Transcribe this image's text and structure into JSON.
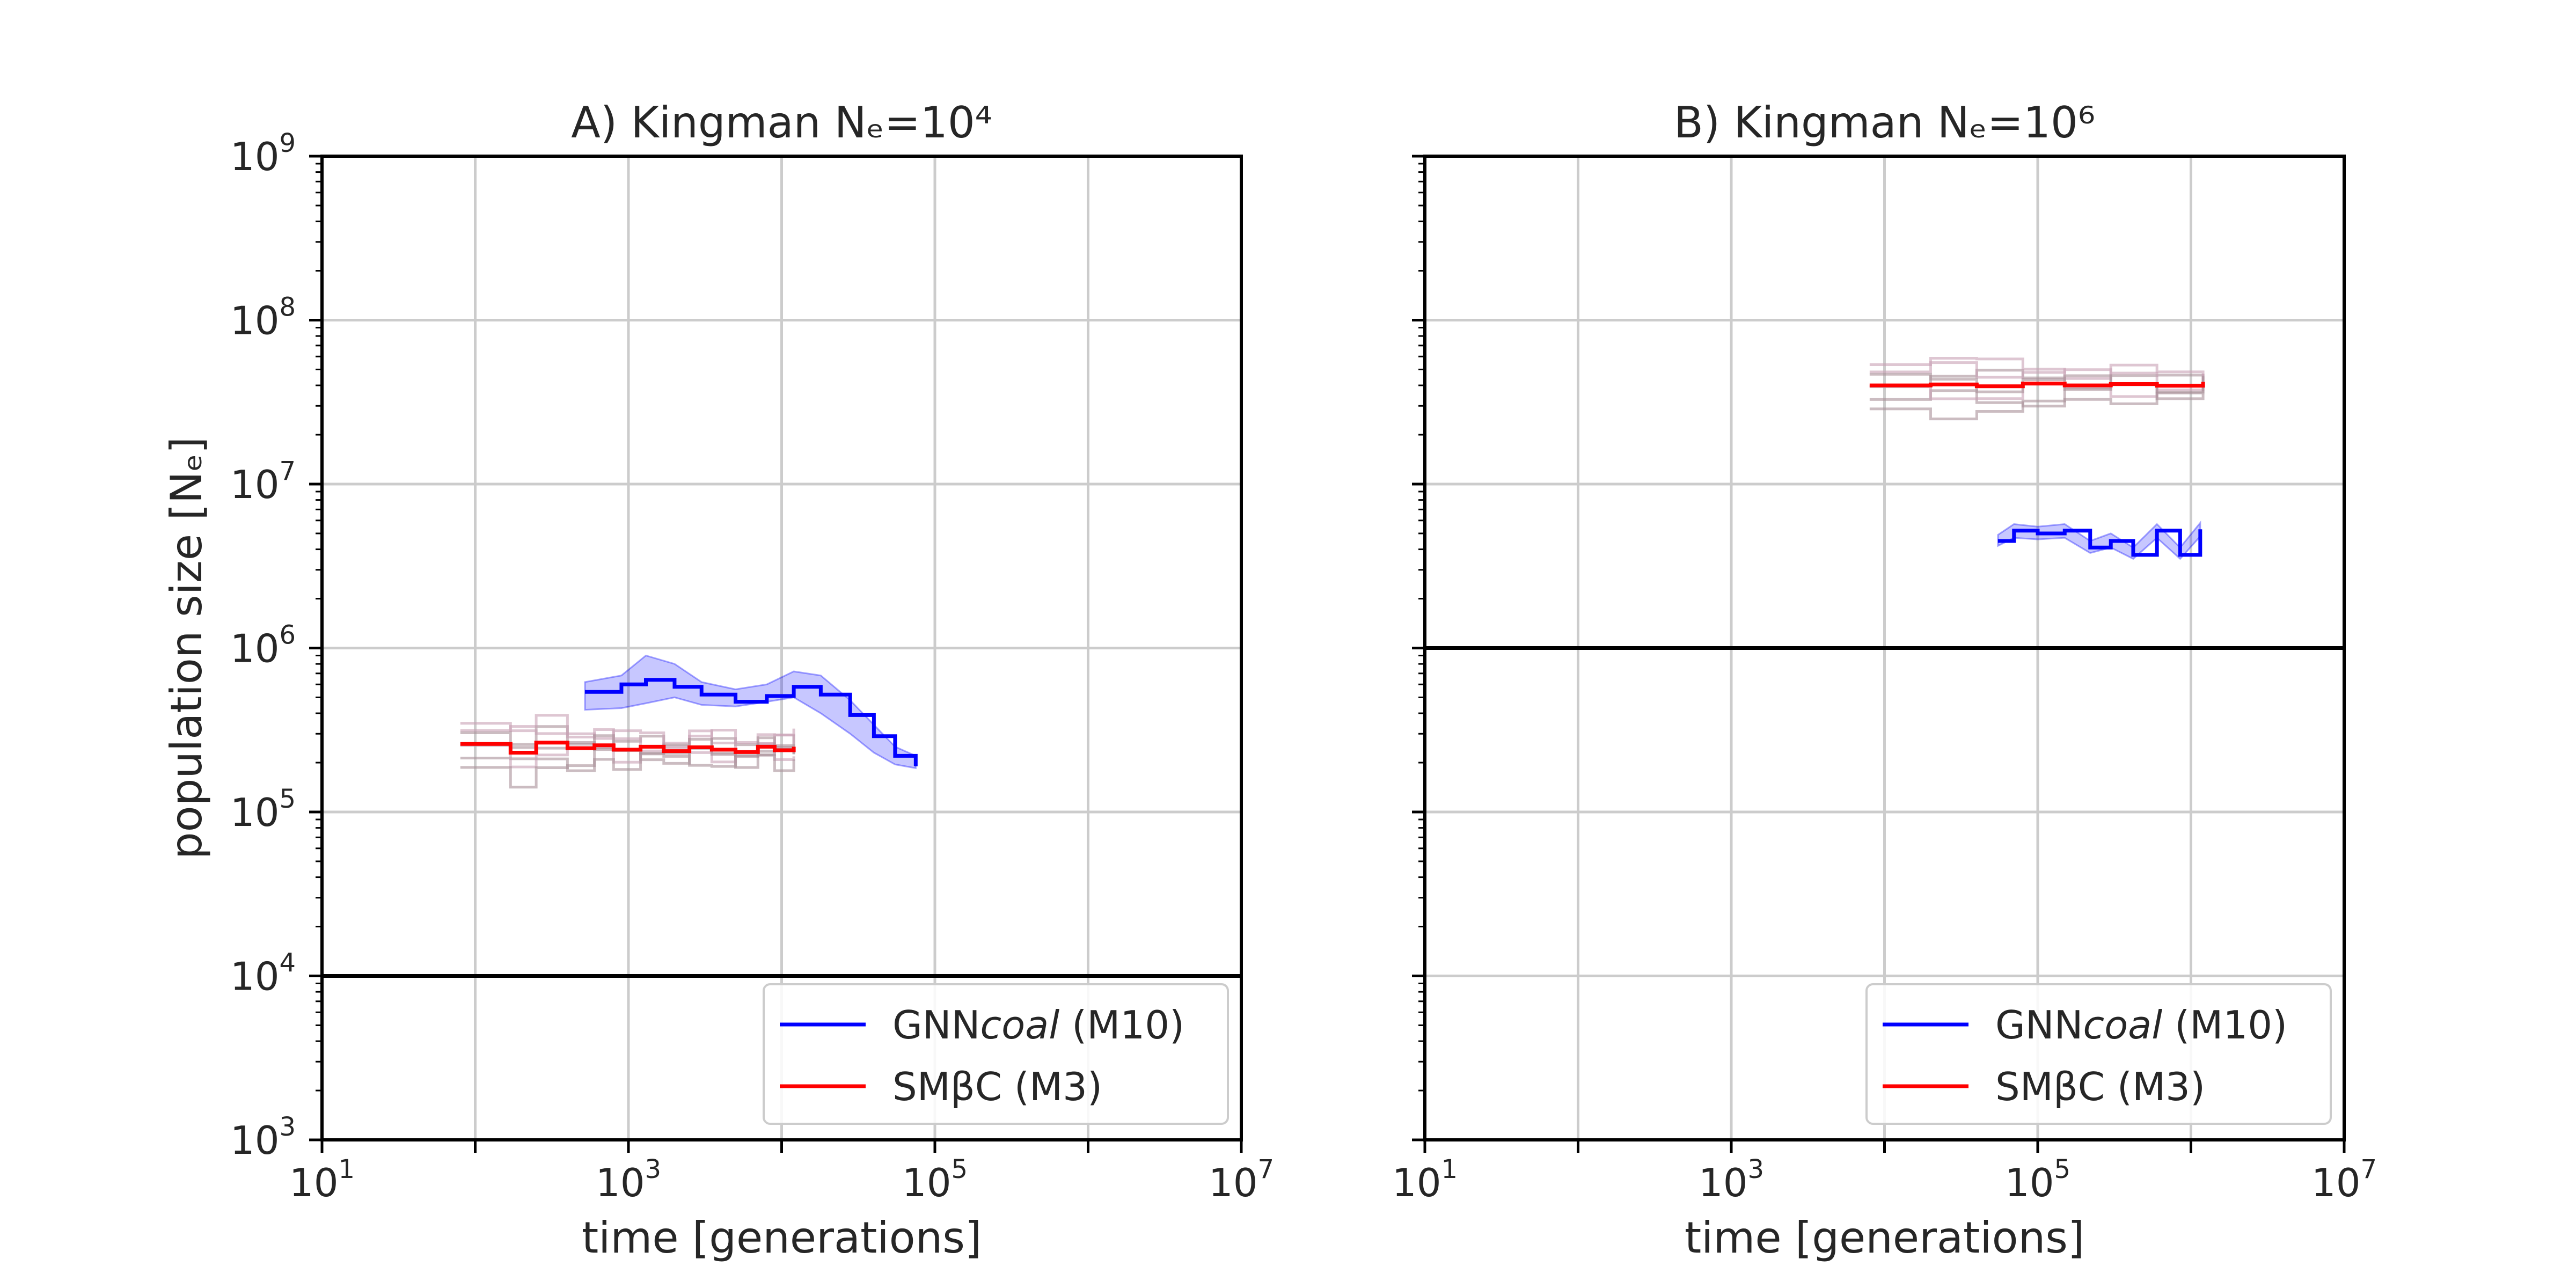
{
  "chart_data": [
    {
      "type": "line",
      "title": "A) Kingman Nₑ=10⁴",
      "xlabel": "time [generations]",
      "ylabel": "population size [Nₑ]",
      "xscale": "log",
      "yscale": "log",
      "xlim": [
        10,
        10000000
      ],
      "ylim": [
        1000,
        1000000000
      ],
      "x_ticks": [
        {
          "base": "10",
          "exp": "1"
        },
        {
          "base": "10",
          "exp": "3"
        },
        {
          "base": "10",
          "exp": "5"
        },
        {
          "base": "10",
          "exp": "7"
        }
      ],
      "y_ticks": [
        {
          "base": "10",
          "exp": "3"
        },
        {
          "base": "10",
          "exp": "4"
        },
        {
          "base": "10",
          "exp": "5"
        },
        {
          "base": "10",
          "exp": "6"
        },
        {
          "base": "10",
          "exp": "7"
        },
        {
          "base": "10",
          "exp": "8"
        },
        {
          "base": "10",
          "exp": "9"
        }
      ],
      "grid": true,
      "true_ne": 10000,
      "legend": {
        "placement": "lower right",
        "items": [
          {
            "name_main": "GNN",
            "name_italic": "coal",
            "name_tail": " (M10)",
            "color": "#0000ff"
          },
          {
            "name_main": "SMβC (M3)",
            "name_italic": "",
            "name_tail": "",
            "color": "#ff0000"
          }
        ]
      },
      "series": [
        {
          "name": "GNNcoal (M10)",
          "color": "#0000ff",
          "step": true,
          "x": [
            520,
            900,
            1300,
            2000,
            3000,
            5000,
            8000,
            12000,
            18000,
            28000,
            40000,
            55000,
            75000
          ],
          "y": [
            540000,
            600000,
            640000,
            580000,
            520000,
            470000,
            510000,
            580000,
            520000,
            390000,
            290000,
            220000,
            190000
          ],
          "band_low": [
            420000,
            430000,
            460000,
            500000,
            450000,
            440000,
            470000,
            500000,
            400000,
            300000,
            230000,
            195000,
            185000
          ],
          "band_high": [
            620000,
            680000,
            900000,
            800000,
            620000,
            560000,
            600000,
            720000,
            680000,
            480000,
            340000,
            250000,
            220000
          ]
        },
        {
          "name": "SMβC (M3)",
          "color": "#ff0000",
          "step": true,
          "x": [
            80,
            170,
            250,
            400,
            600,
            800,
            1200,
            1700,
            2500,
            3500,
            5000,
            7000,
            9000,
            12000
          ],
          "y": [
            260000,
            230000,
            265000,
            245000,
            255000,
            240000,
            250000,
            235000,
            248000,
            240000,
            232000,
            250000,
            238000,
            250000
          ]
        }
      ]
    },
    {
      "type": "line",
      "title": "B) Kingman Nₑ=10⁶",
      "xlabel": "time [generations]",
      "ylabel": "",
      "xscale": "log",
      "yscale": "log",
      "xlim": [
        10,
        10000000
      ],
      "ylim": [
        1000,
        1000000000
      ],
      "x_ticks": [
        {
          "base": "10",
          "exp": "1"
        },
        {
          "base": "10",
          "exp": "3"
        },
        {
          "base": "10",
          "exp": "5"
        },
        {
          "base": "10",
          "exp": "7"
        }
      ],
      "y_ticks": [],
      "grid": true,
      "true_ne": 1000000,
      "legend": {
        "placement": "lower right",
        "items": [
          {
            "name_main": "GNN",
            "name_italic": "coal",
            "name_tail": " (M10)",
            "color": "#0000ff"
          },
          {
            "name_main": "SMβC (M3)",
            "name_italic": "",
            "name_tail": "",
            "color": "#ff0000"
          }
        ]
      },
      "series": [
        {
          "name": "GNNcoal (M10)",
          "color": "#0000ff",
          "step": true,
          "x": [
            55000,
            70000,
            100000,
            150000,
            220000,
            300000,
            420000,
            600000,
            850000,
            1150000
          ],
          "y": [
            4500000,
            5200000,
            5000000,
            5200000,
            4100000,
            4500000,
            3700000,
            5200000,
            3700000,
            5300000
          ],
          "band_low": [
            4200000,
            4700000,
            4600000,
            4700000,
            3800000,
            4100000,
            3500000,
            4700000,
            3500000,
            4800000
          ],
          "band_high": [
            4900000,
            5700000,
            5500000,
            5700000,
            4500000,
            5000000,
            4100000,
            5700000,
            4100000,
            5800000
          ]
        },
        {
          "name": "SMβC (M3)",
          "color": "#ff0000",
          "step": true,
          "x": [
            8000,
            20000,
            40000,
            80000,
            150000,
            300000,
            600000,
            1200000
          ],
          "y": [
            40000000,
            40500000,
            39500000,
            41000000,
            40000000,
            40800000,
            39800000,
            42000000
          ]
        }
      ]
    }
  ]
}
